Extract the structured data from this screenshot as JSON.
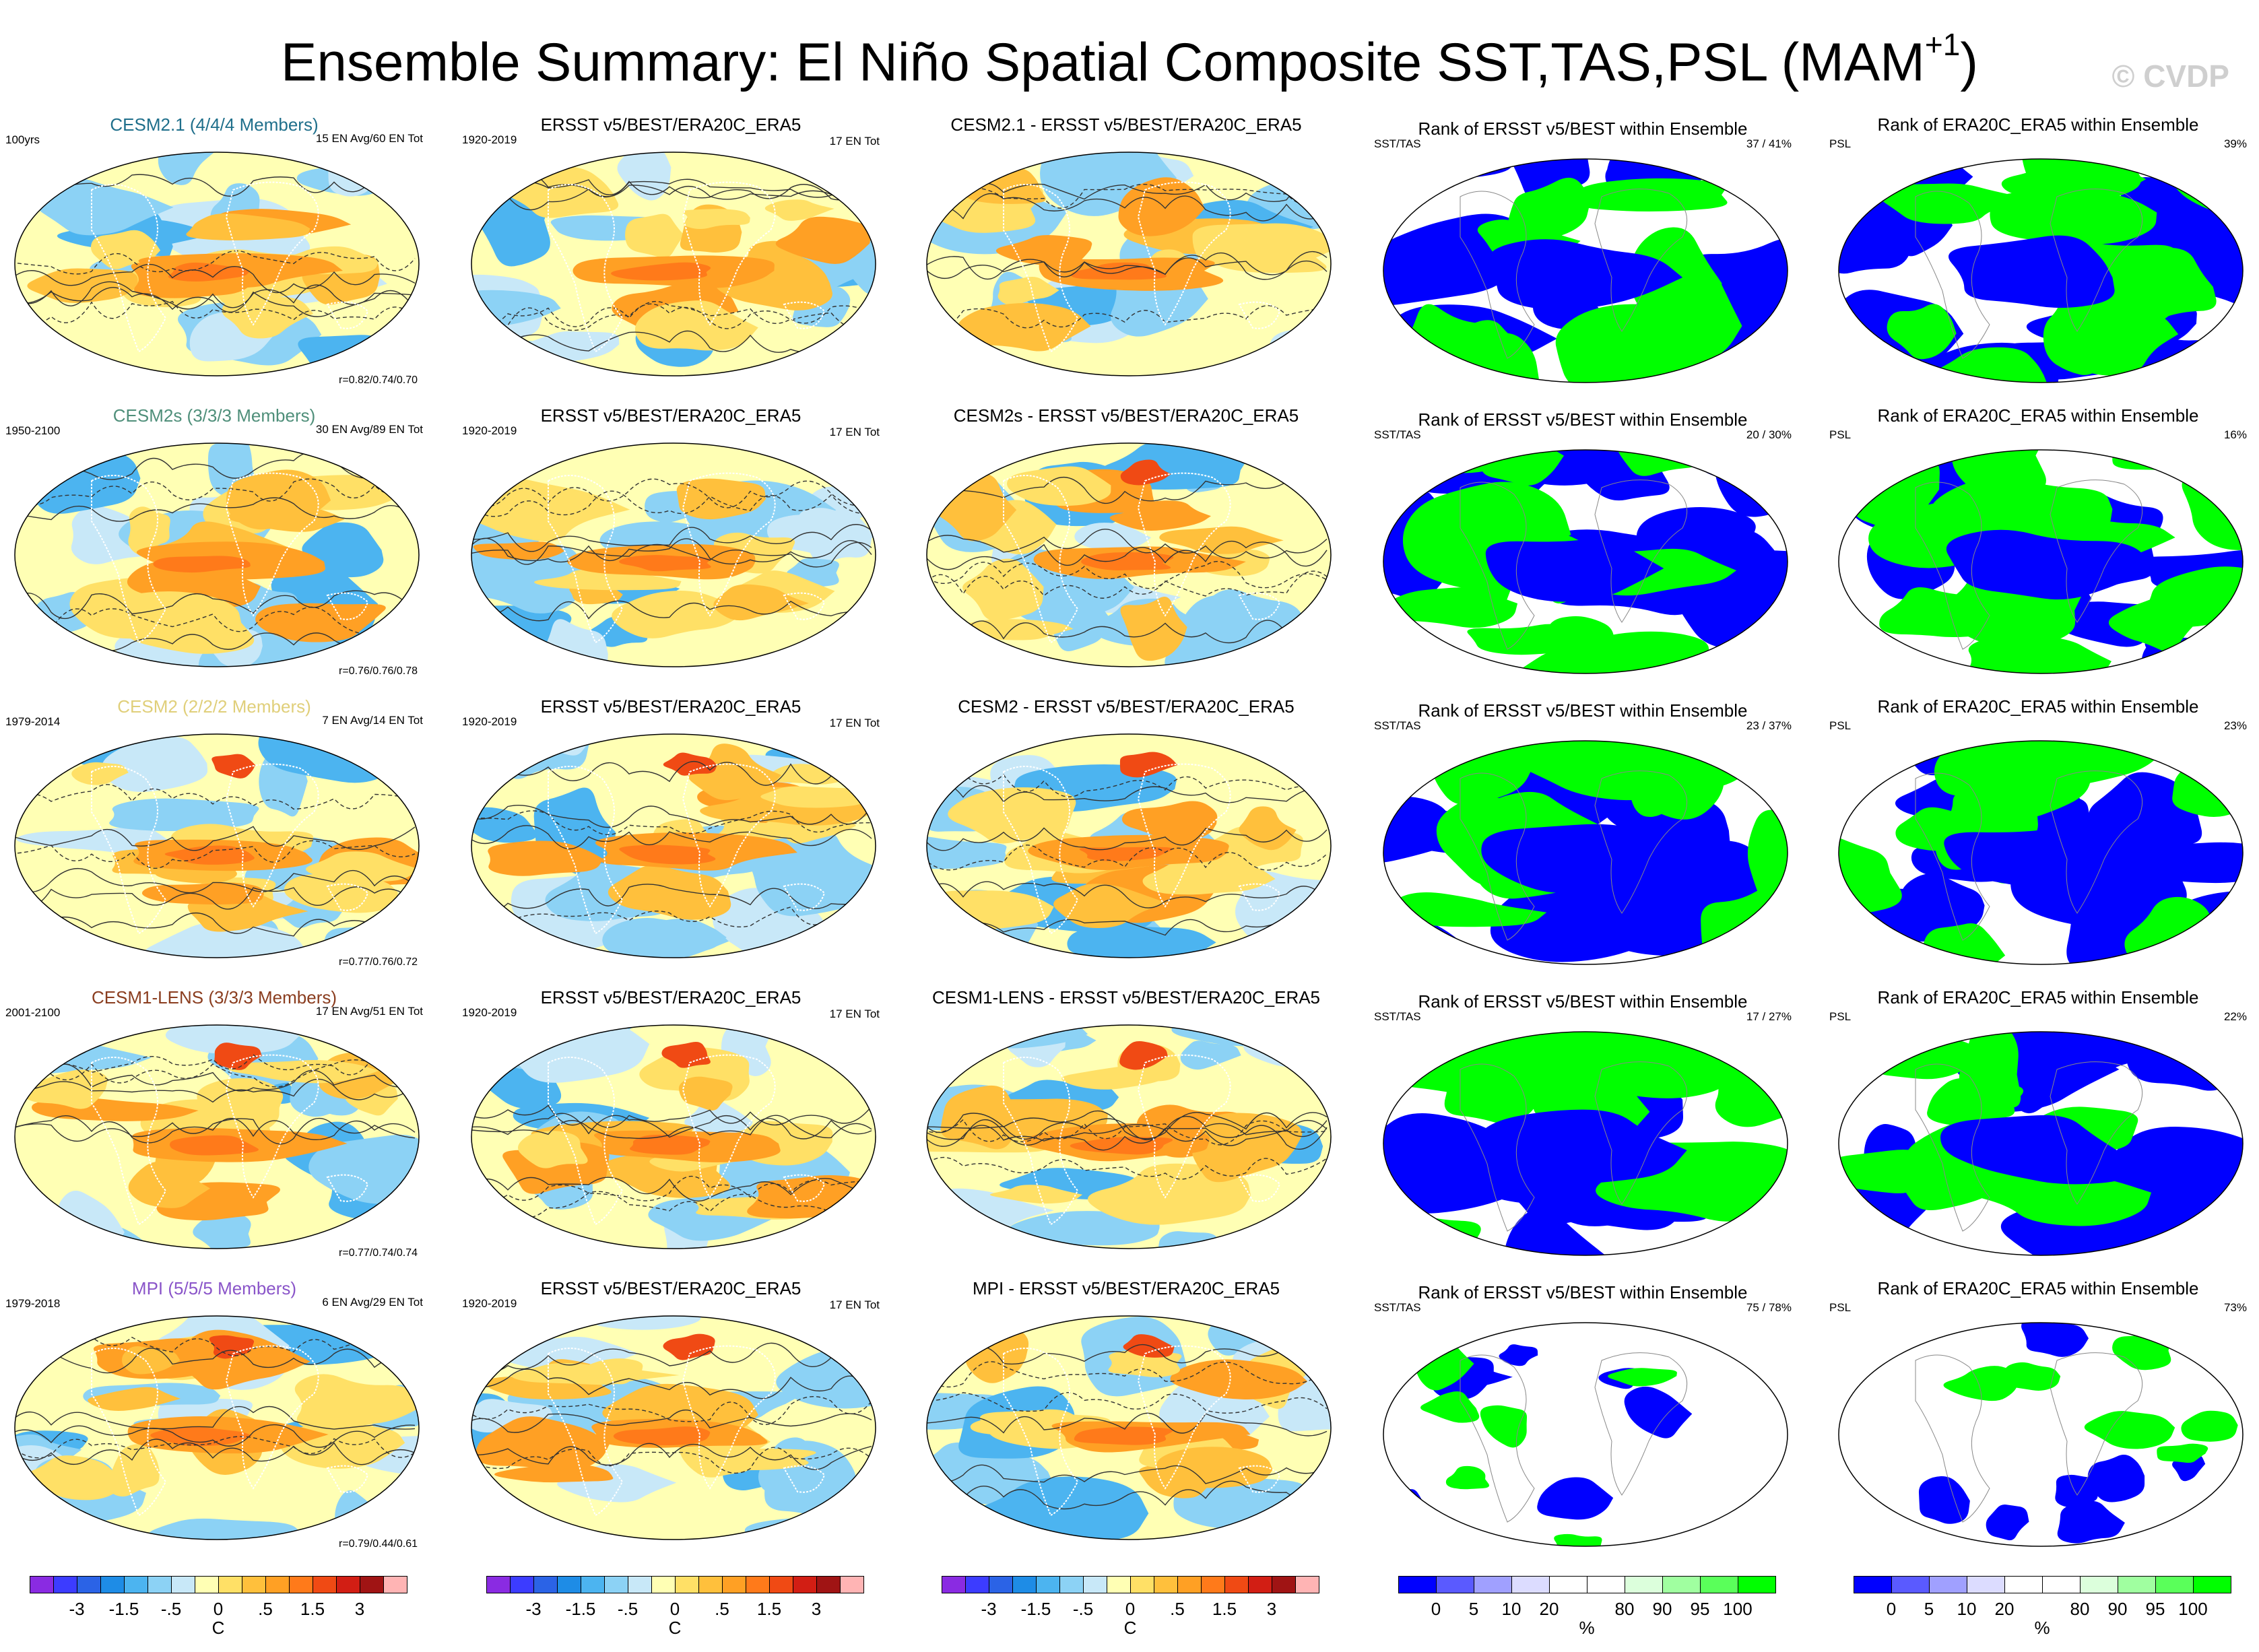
{
  "title": {
    "main": "Ensemble Summary: El Niño Spatial Composite SST,TAS,PSL (MAM",
    "sup": "+1",
    "close": ")"
  },
  "watermark": "© CVDP",
  "columns": [
    {
      "obs_title": "ERSST v5/BEST/ERA20C_ERA5",
      "obs_years": "1920-2019",
      "obs_count": "17 EN Tot"
    },
    {
      "rank_sst_title": "Rank of ERSST v5/BEST within Ensemble",
      "rank_sst_label": "SST/TAS"
    },
    {
      "rank_psl_title": "Rank of ERA20C_ERA5 within Ensemble",
      "rank_psl_label": "PSL"
    }
  ],
  "rows": [
    {
      "model_title": "CESM2.1 (4/4/4 Members)",
      "model_color": "#1f6f8b",
      "years": "100yrs",
      "counts": "15 EN Avg/60 EN Tot",
      "corr": "r=0.82/0.74/0.70",
      "diff_title": "CESM2.1 - ERSST v5/BEST/ERA20C_ERA5",
      "rank_sst_pct": "37 /  41%",
      "rank_psl_pct": "39%"
    },
    {
      "model_title": "CESM2s (3/3/3 Members)",
      "model_color": "#4f8f7a",
      "years": "1950-2100",
      "counts": "30 EN Avg/89 EN Tot",
      "corr": "r=0.76/0.76/0.78",
      "diff_title": "CESM2s - ERSST v5/BEST/ERA20C_ERA5",
      "rank_sst_pct": "20 /  30%",
      "rank_psl_pct": "16%"
    },
    {
      "model_title": "CESM2 (2/2/2 Members)",
      "model_color": "#e0cf7a",
      "years": "1979-2014",
      "counts": "7 EN Avg/14 EN Tot",
      "corr": "r=0.77/0.76/0.72",
      "diff_title": "CESM2 - ERSST v5/BEST/ERA20C_ERA5",
      "rank_sst_pct": "23 /  37%",
      "rank_psl_pct": "23%"
    },
    {
      "model_title": "CESM1-LENS (3/3/3 Members)",
      "model_color": "#8a3d1f",
      "years": "2001-2100",
      "counts": "17 EN Avg/51 EN Tot",
      "corr": "r=0.77/0.74/0.74",
      "diff_title": "CESM1-LENS - ERSST v5/BEST/ERA20C_ERA5",
      "rank_sst_pct": "17 /  27%",
      "rank_psl_pct": "22%"
    },
    {
      "model_title": "MPI (5/5/5 Members)",
      "model_color": "#8a55c9",
      "years": "1979-2018",
      "counts": "6 EN Avg/29 EN Tot",
      "corr": "r=0.79/0.44/0.61",
      "diff_title": "MPI - ERSST v5/BEST/ERA20C_ERA5",
      "rank_sst_pct": "75 /  78%",
      "rank_psl_pct": "73%"
    }
  ],
  "colorbar_temp": {
    "colors": [
      "#8a2be2",
      "#3c3cff",
      "#2b63e6",
      "#1e8ce6",
      "#4cb4f0",
      "#8cd2f5",
      "#c8e8f8",
      "#ffffb4",
      "#ffe066",
      "#ffc03c",
      "#ffa024",
      "#ff7a1a",
      "#f04a14",
      "#d21e14",
      "#a01414",
      "#ffb4b4"
    ],
    "labels": [
      "-3",
      "-1.5",
      "-.5",
      "0",
      ".5",
      "1.5",
      "3"
    ],
    "label_index": [
      2,
      4,
      6,
      8,
      10,
      12,
      14
    ],
    "unit": "C"
  },
  "colorbar_rank": {
    "colors": [
      "#0000ff",
      "#5a5aff",
      "#a0a0ff",
      "#dcdcff",
      "#ffffff",
      "#ffffff",
      "#dcffdc",
      "#a0ffa0",
      "#5aff5a",
      "#00ff00"
    ],
    "labels": [
      "0",
      "5",
      "10",
      "20",
      "80",
      "90",
      "95",
      "100"
    ],
    "label_index": [
      1,
      2,
      3,
      4,
      6,
      7,
      8,
      9
    ],
    "unit": "%"
  }
}
